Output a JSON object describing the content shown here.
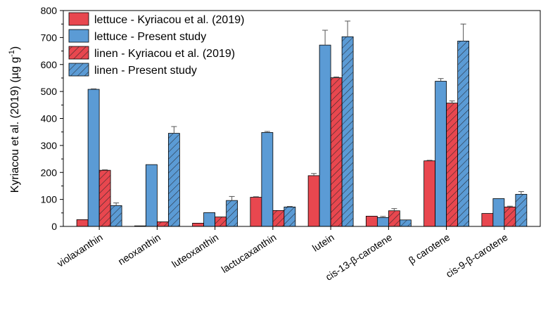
{
  "chart_data": {
    "type": "bar",
    "title": "",
    "xlabel": "",
    "ylabel_main": "Kyriacou et al. (2019) (µg g",
    "ylabel_sup": "-1",
    "ylabel_end": ")",
    "ylim": [
      0,
      800
    ],
    "yticks": [
      0,
      100,
      200,
      300,
      400,
      500,
      600,
      700,
      800
    ],
    "categories": [
      "violaxanthin",
      "neoxanthin",
      "luteoxanthin",
      "lactucaxanthin",
      "lutein",
      "cis-13-β-carotene",
      "β carotene",
      "cis-9-β-carotene"
    ],
    "series": [
      {
        "name": "lettuce - Kyriacou et al. (2019)",
        "color": "#e8474f",
        "hatched": false,
        "values": [
          25,
          2,
          12,
          108,
          188,
          38,
          243,
          48
        ],
        "errors": [
          0,
          0,
          0,
          2,
          8,
          0,
          2,
          0
        ]
      },
      {
        "name": "lettuce - Present study",
        "color": "#5b9bd5",
        "hatched": false,
        "values": [
          508,
          229,
          51,
          348,
          672,
          33,
          538,
          103
        ],
        "errors": [
          2,
          0,
          0,
          4,
          55,
          4,
          10,
          0
        ]
      },
      {
        "name": "linen - Kyriacou et al. (2019)",
        "color": "#e8474f",
        "hatched": true,
        "values": [
          208,
          17,
          35,
          59,
          551,
          58,
          457,
          72
        ],
        "errors": [
          2,
          0,
          0,
          0,
          3,
          8,
          8,
          3
        ]
      },
      {
        "name": "linen - Present study",
        "color": "#5b9bd5",
        "hatched": true,
        "values": [
          77,
          345,
          96,
          72,
          703,
          24,
          687,
          119
        ],
        "errors": [
          10,
          25,
          15,
          2,
          58,
          0,
          63,
          10
        ]
      }
    ],
    "legend_position": "top-left"
  }
}
